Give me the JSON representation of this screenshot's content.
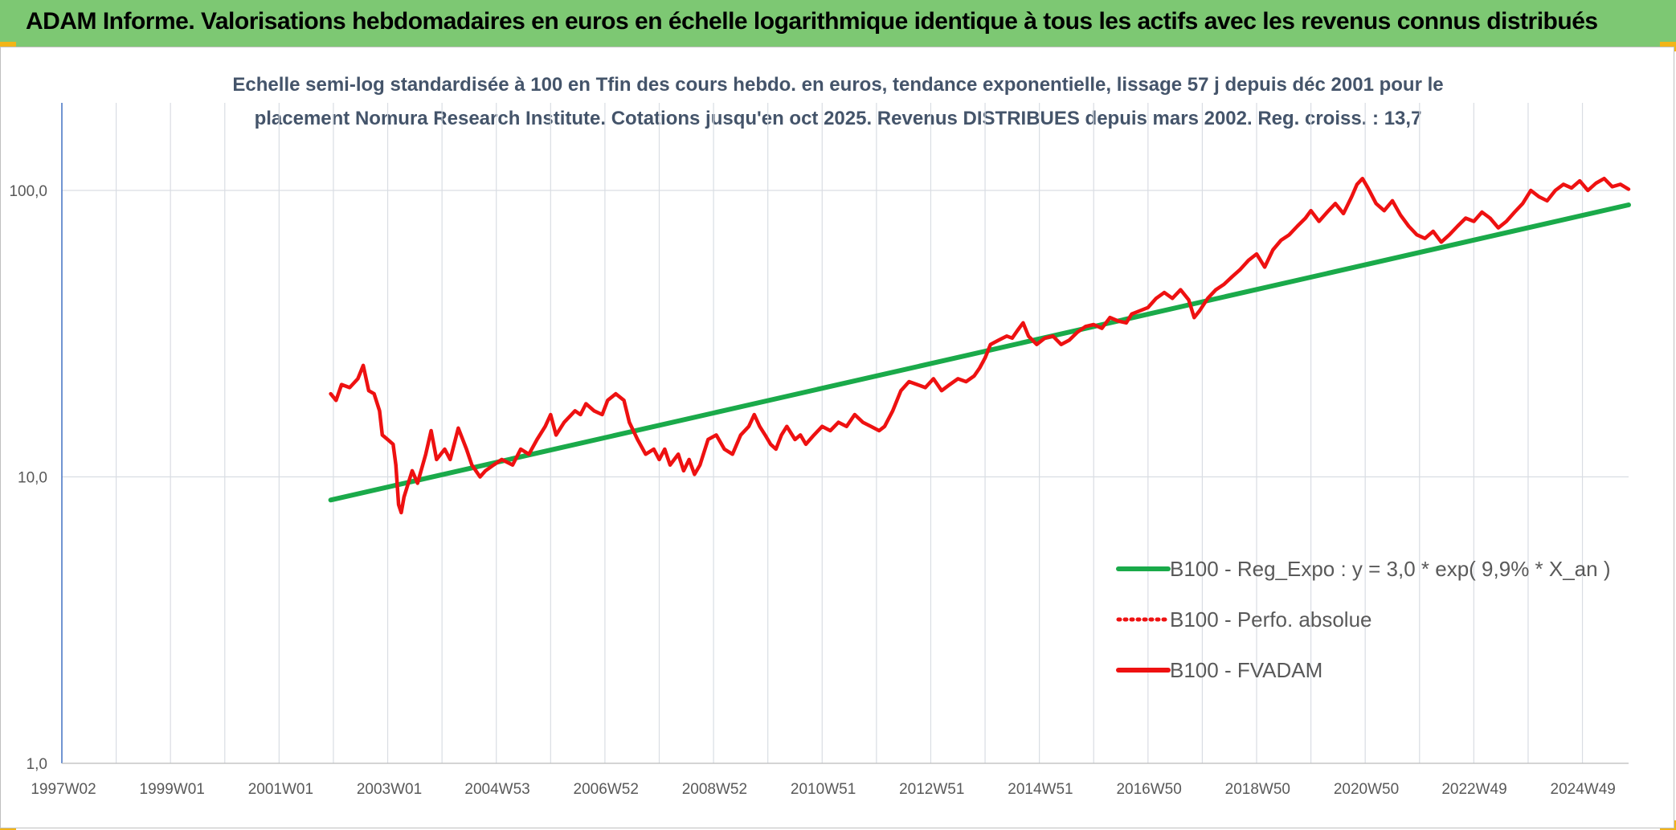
{
  "header": {
    "title": "ADAM Informe. Valorisations hebdomadaires en euros en échelle logarithmique identique à tous les actifs avec les revenus connus distribués"
  },
  "colors": {
    "banner": "#7dc873",
    "corner": "#f2b518",
    "series_red": "#ee1111",
    "series_green": "#1aaa4a",
    "grid": "#d9dde3",
    "axis": "#4472c4"
  },
  "chart_data": {
    "type": "line",
    "title_line1": "Echelle semi-log standardisée à 100 en Tfin des cours hebdo. en euros, tendance exponentielle, lissage 57 j depuis déc 2001 pour le",
    "title_line2": "placement Nomura Research Institute. Cotations jusqu'en oct 2025. Revenus DISTRIBUES depuis mars 2002. Reg. croiss. : 13,7",
    "y_scale": "log",
    "ylim": [
      1,
      180
    ],
    "y_ticks": [
      {
        "value": 1,
        "label": "1,0"
      },
      {
        "value": 10,
        "label": "10,0"
      },
      {
        "value": 100,
        "label": "100,0"
      }
    ],
    "xlim": [
      1997.0,
      2025.85
    ],
    "x_ticks": [
      {
        "value": 1997.0,
        "label": "1997W02"
      },
      {
        "value": 1999.0,
        "label": "1999W01"
      },
      {
        "value": 2001.0,
        "label": "2001W01"
      },
      {
        "value": 2003.0,
        "label": "2003W01"
      },
      {
        "value": 2004.99,
        "label": "2004W53"
      },
      {
        "value": 2006.99,
        "label": "2006W52"
      },
      {
        "value": 2008.99,
        "label": "2008W52"
      },
      {
        "value": 2010.99,
        "label": "2010W51"
      },
      {
        "value": 2012.99,
        "label": "2012W51"
      },
      {
        "value": 2014.99,
        "label": "2014W51"
      },
      {
        "value": 2016.99,
        "label": "2016W50"
      },
      {
        "value": 2018.99,
        "label": "2018W50"
      },
      {
        "value": 2020.99,
        "label": "2020W50"
      },
      {
        "value": 2022.98,
        "label": "2022W49"
      },
      {
        "value": 2024.98,
        "label": "2024W49"
      }
    ],
    "grid": true,
    "legend_position": "right",
    "series": [
      {
        "name": "B100 - Reg_Expo : y = 3,0 * exp( 9,9% *  X_an )",
        "color": "#1aaa4a",
        "style": "solid",
        "points": [
          [
            2001.95,
            8.3
          ],
          [
            2025.85,
            89
          ]
        ]
      },
      {
        "name": "B100 - Perfo. absolue",
        "color": "#ee1111",
        "style": "dotted",
        "points": []
      },
      {
        "name": "B100 - FVADAM",
        "color": "#ee1111",
        "style": "solid",
        "points": [
          [
            2001.95,
            19.5
          ],
          [
            2002.05,
            18.5
          ],
          [
            2002.15,
            21
          ],
          [
            2002.3,
            20.5
          ],
          [
            2002.45,
            22
          ],
          [
            2002.55,
            24.5
          ],
          [
            2002.65,
            20
          ],
          [
            2002.75,
            19.5
          ],
          [
            2002.85,
            17
          ],
          [
            2002.9,
            14
          ],
          [
            2003.0,
            13.5
          ],
          [
            2003.1,
            13
          ],
          [
            2003.15,
            11
          ],
          [
            2003.2,
            8
          ],
          [
            2003.25,
            7.5
          ],
          [
            2003.3,
            8.5
          ],
          [
            2003.45,
            10.5
          ],
          [
            2003.55,
            9.5
          ],
          [
            2003.7,
            12
          ],
          [
            2003.8,
            14.5
          ],
          [
            2003.9,
            11.5
          ],
          [
            2004.05,
            12.5
          ],
          [
            2004.15,
            11.5
          ],
          [
            2004.3,
            14.8
          ],
          [
            2004.45,
            12.5
          ],
          [
            2004.55,
            11
          ],
          [
            2004.7,
            10
          ],
          [
            2004.8,
            10.5
          ],
          [
            2004.95,
            11
          ],
          [
            2005.1,
            11.5
          ],
          [
            2005.3,
            11
          ],
          [
            2005.45,
            12.5
          ],
          [
            2005.6,
            12
          ],
          [
            2005.75,
            13.5
          ],
          [
            2005.9,
            15
          ],
          [
            2006.0,
            16.5
          ],
          [
            2006.1,
            14
          ],
          [
            2006.25,
            15.5
          ],
          [
            2006.45,
            17
          ],
          [
            2006.55,
            16.5
          ],
          [
            2006.65,
            18
          ],
          [
            2006.8,
            17
          ],
          [
            2006.95,
            16.5
          ],
          [
            2007.05,
            18.5
          ],
          [
            2007.2,
            19.5
          ],
          [
            2007.35,
            18.5
          ],
          [
            2007.45,
            15.5
          ],
          [
            2007.6,
            13.5
          ],
          [
            2007.75,
            12
          ],
          [
            2007.9,
            12.5
          ],
          [
            2008.0,
            11.5
          ],
          [
            2008.1,
            12.5
          ],
          [
            2008.2,
            11
          ],
          [
            2008.35,
            12
          ],
          [
            2008.45,
            10.5
          ],
          [
            2008.55,
            11.5
          ],
          [
            2008.65,
            10.2
          ],
          [
            2008.75,
            11
          ],
          [
            2008.9,
            13.5
          ],
          [
            2009.05,
            14
          ],
          [
            2009.2,
            12.5
          ],
          [
            2009.35,
            12
          ],
          [
            2009.5,
            14
          ],
          [
            2009.65,
            15
          ],
          [
            2009.75,
            16.5
          ],
          [
            2009.85,
            15
          ],
          [
            2009.95,
            14
          ],
          [
            2010.05,
            13
          ],
          [
            2010.15,
            12.5
          ],
          [
            2010.25,
            14
          ],
          [
            2010.35,
            15
          ],
          [
            2010.5,
            13.5
          ],
          [
            2010.6,
            14
          ],
          [
            2010.7,
            13
          ],
          [
            2010.85,
            14
          ],
          [
            2011.0,
            15
          ],
          [
            2011.15,
            14.5
          ],
          [
            2011.3,
            15.5
          ],
          [
            2011.45,
            15
          ],
          [
            2011.6,
            16.5
          ],
          [
            2011.75,
            15.5
          ],
          [
            2011.9,
            15
          ],
          [
            2012.05,
            14.5
          ],
          [
            2012.15,
            15
          ],
          [
            2012.3,
            17
          ],
          [
            2012.45,
            20
          ],
          [
            2012.6,
            21.5
          ],
          [
            2012.75,
            21
          ],
          [
            2012.9,
            20.5
          ],
          [
            2013.05,
            22
          ],
          [
            2013.2,
            20
          ],
          [
            2013.35,
            21
          ],
          [
            2013.5,
            22
          ],
          [
            2013.65,
            21.5
          ],
          [
            2013.8,
            22.5
          ],
          [
            2013.9,
            24
          ],
          [
            2014.0,
            26
          ],
          [
            2014.1,
            29
          ],
          [
            2014.25,
            30
          ],
          [
            2014.4,
            31
          ],
          [
            2014.5,
            30.5
          ],
          [
            2014.6,
            32.5
          ],
          [
            2014.7,
            34.5
          ],
          [
            2014.8,
            31
          ],
          [
            2014.95,
            29
          ],
          [
            2015.1,
            30.5
          ],
          [
            2015.25,
            31
          ],
          [
            2015.4,
            29
          ],
          [
            2015.55,
            30
          ],
          [
            2015.7,
            32
          ],
          [
            2015.85,
            33.5
          ],
          [
            2016.0,
            34
          ],
          [
            2016.15,
            33
          ],
          [
            2016.3,
            36
          ],
          [
            2016.45,
            35
          ],
          [
            2016.6,
            34.5
          ],
          [
            2016.7,
            37
          ],
          [
            2016.85,
            38
          ],
          [
            2017.0,
            39
          ],
          [
            2017.15,
            42
          ],
          [
            2017.3,
            44
          ],
          [
            2017.45,
            42
          ],
          [
            2017.6,
            45
          ],
          [
            2017.75,
            41.5
          ],
          [
            2017.85,
            36
          ],
          [
            2017.95,
            38
          ],
          [
            2018.1,
            42
          ],
          [
            2018.25,
            45
          ],
          [
            2018.4,
            47
          ],
          [
            2018.55,
            50
          ],
          [
            2018.7,
            53
          ],
          [
            2018.85,
            57
          ],
          [
            2019.0,
            60
          ],
          [
            2019.15,
            54
          ],
          [
            2019.3,
            62
          ],
          [
            2019.45,
            67
          ],
          [
            2019.6,
            70
          ],
          [
            2019.75,
            75
          ],
          [
            2019.9,
            80
          ],
          [
            2020.0,
            85
          ],
          [
            2020.15,
            78
          ],
          [
            2020.3,
            84
          ],
          [
            2020.45,
            90
          ],
          [
            2020.6,
            83
          ],
          [
            2020.75,
            95
          ],
          [
            2020.85,
            105
          ],
          [
            2020.95,
            110
          ],
          [
            2021.05,
            102
          ],
          [
            2021.2,
            90
          ],
          [
            2021.35,
            85
          ],
          [
            2021.5,
            92
          ],
          [
            2021.65,
            82
          ],
          [
            2021.8,
            75
          ],
          [
            2021.95,
            70
          ],
          [
            2022.1,
            68
          ],
          [
            2022.25,
            72
          ],
          [
            2022.4,
            66
          ],
          [
            2022.55,
            70
          ],
          [
            2022.7,
            75
          ],
          [
            2022.85,
            80
          ],
          [
            2023.0,
            78
          ],
          [
            2023.15,
            84
          ],
          [
            2023.3,
            80
          ],
          [
            2023.45,
            74
          ],
          [
            2023.6,
            78
          ],
          [
            2023.75,
            84
          ],
          [
            2023.9,
            90
          ],
          [
            2024.05,
            100
          ],
          [
            2024.2,
            95
          ],
          [
            2024.35,
            92
          ],
          [
            2024.5,
            100
          ],
          [
            2024.65,
            105
          ],
          [
            2024.8,
            102
          ],
          [
            2024.95,
            108
          ],
          [
            2025.1,
            100
          ],
          [
            2025.25,
            106
          ],
          [
            2025.4,
            110
          ],
          [
            2025.55,
            103
          ],
          [
            2025.7,
            105
          ],
          [
            2025.85,
            101
          ]
        ]
      }
    ]
  }
}
